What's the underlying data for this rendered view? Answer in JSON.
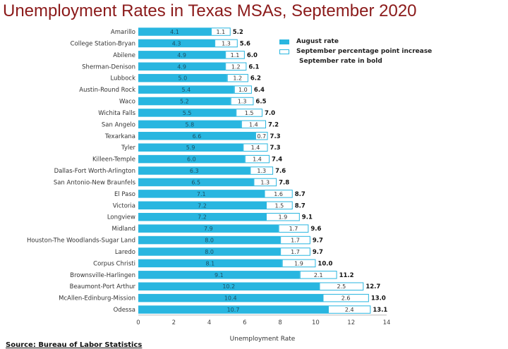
{
  "chart_data": {
    "type": "bar",
    "stacked": true,
    "orientation": "horizontal",
    "title": "Unemployment Rates in Texas MSAs, September 2020",
    "xlabel": "Unemployment Rate",
    "xlim": [
      0,
      14
    ],
    "xticks": [
      0,
      2,
      4,
      6,
      8,
      10,
      12,
      14
    ],
    "categories": [
      "Amarillo",
      "College Station-Bryan",
      "Abilene",
      "Sherman-Denison",
      "Lubbock",
      "Austin-Round Rock",
      "Waco",
      "Wichita Falls",
      "San Angelo",
      "Texarkana",
      "Tyler",
      "Killeen-Temple",
      "Dallas-Fort Worth-Arlington",
      "San Antonio-New Braunfels",
      "El Paso",
      "Victoria",
      "Longview",
      "Midland",
      "Houston-The Woodlands-Sugar Land",
      "Laredo",
      "Corpus Christi",
      "Brownsville-Harlingen",
      "Beaumont-Port Arthur",
      "McAllen-Edinburg-Mission",
      "Odessa"
    ],
    "series": [
      {
        "name": "August rate",
        "values": [
          "4.1",
          "4.3",
          "4.9",
          "4.9",
          "5.0",
          "5.4",
          "5.2",
          "5.5",
          "5.8",
          "6.6",
          "5.9",
          "6.0",
          "6.3",
          "6.5",
          "7.1",
          "7.2",
          "7.2",
          "7.9",
          "8.0",
          "8.0",
          "8.1",
          "9.1",
          "10.2",
          "10.4",
          "10.7"
        ],
        "color": "#29b6e0"
      },
      {
        "name": "September percentage point increase",
        "values": [
          "1.1",
          "1.3",
          "1.1",
          "1.2",
          "1.2",
          "1.0",
          "1.3",
          "1.5",
          "1.4",
          "0.7",
          "1.4",
          "1.4",
          "1.3",
          "1.3",
          "1.6",
          "1.5",
          "1.9",
          "1.7",
          "1.7",
          "1.7",
          "1.9",
          "2.1",
          "2.5",
          "2.6",
          "2.4"
        ],
        "color": "#ffffff",
        "border": "#29b6e0"
      }
    ],
    "totals": [
      "5.2",
      "5.6",
      "6.0",
      "6.1",
      "6.2",
      "6.4",
      "6.5",
      "7.0",
      "7.2",
      "7.3",
      "7.3",
      "7.4",
      "7.6",
      "7.8",
      "8.7",
      "8.7",
      "9.1",
      "9.6",
      "9.7",
      "9.7",
      "10.0",
      "11.2",
      "12.7",
      "13.0",
      "13.1"
    ],
    "legend": {
      "position": "top-right",
      "note_prefix": "September rate in ",
      "note_bold": "bold"
    },
    "source": "Source: Bureau of Labor Statistics"
  }
}
